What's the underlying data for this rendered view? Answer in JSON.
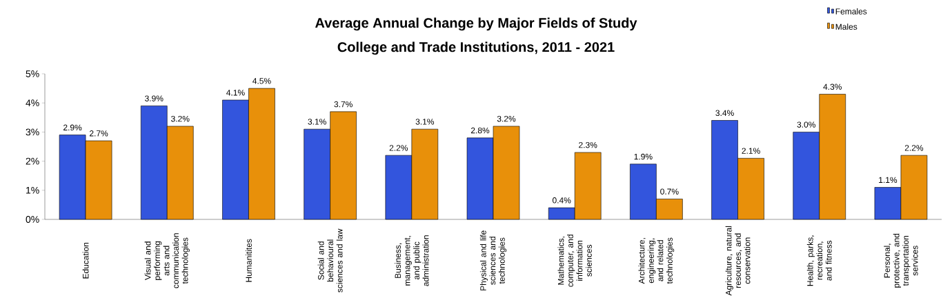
{
  "chart_data": {
    "type": "bar",
    "title": "Average Annual Change by Major Fields of Study",
    "subtitle": "College and Trade Institutions, 2011 - 2021",
    "categories": [
      "Education",
      "Visual and performing arts and communication technologies",
      "Humanitites",
      "Social and behavioural sciences and law",
      "Business, management, and public administration",
      "Physical and life sciences and technologies",
      "Mathematics, computer, and information sciences",
      "Architecture, engineering, and related technologies",
      "Agriculture, natural resources, and conservation",
      "Health, parks, recreation, and fitness",
      "Personal, protective, and transportation services"
    ],
    "series": [
      {
        "name": "Females",
        "color": "#3355dd",
        "values": [
          2.9,
          3.9,
          4.1,
          3.1,
          2.2,
          2.8,
          0.4,
          1.9,
          3.4,
          3.0,
          1.1
        ],
        "value_labels": [
          "2.9%",
          "3.9%",
          "4.1%",
          "3.1%",
          "2.2%",
          "2.8%",
          "0.4%",
          "1.9%",
          "3.4%",
          "3.0%",
          "1.1%"
        ]
      },
      {
        "name": "Males",
        "color": "#e8900a",
        "values": [
          2.7,
          3.2,
          4.5,
          3.7,
          3.1,
          3.2,
          2.3,
          0.7,
          2.1,
          4.3,
          2.2
        ],
        "value_labels": [
          "2.7%",
          "3.2%",
          "4.5%",
          "3.7%",
          "3.1%",
          "3.2%",
          "2.3%",
          "0.7%",
          "2.1%",
          "4.3%",
          "2.2%"
        ]
      }
    ],
    "ylim": [
      0,
      5
    ],
    "yticks": [
      {
        "value": 0,
        "label": "0%"
      },
      {
        "value": 1,
        "label": "1%"
      },
      {
        "value": 2,
        "label": "2%"
      },
      {
        "value": 3,
        "label": "3%"
      },
      {
        "value": 4,
        "label": "4%"
      },
      {
        "value": 5,
        "label": "5%"
      }
    ],
    "legend": "top right"
  }
}
